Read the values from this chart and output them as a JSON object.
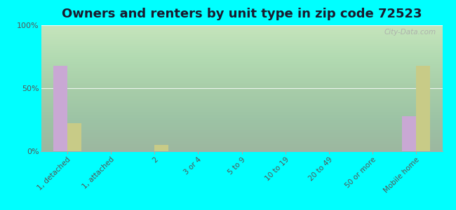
{
  "title": "Owners and renters by unit type in zip code 72523",
  "categories": [
    "1, detached",
    "1, attached",
    "2",
    "3 or 4",
    "5 to 9",
    "10 to 19",
    "20 to 49",
    "50 or more",
    "Mobile home"
  ],
  "owner_values": [
    68,
    0,
    0,
    0,
    0,
    0,
    0,
    0,
    28
  ],
  "renter_values": [
    22,
    0,
    5,
    0,
    0,
    0,
    0,
    0,
    68
  ],
  "owner_color": "#c9a8d4",
  "renter_color": "#c8cb87",
  "background_color": "#00ffff",
  "ylim": [
    0,
    100
  ],
  "yticks": [
    0,
    50,
    100
  ],
  "ytick_labels": [
    "0%",
    "50%",
    "100%"
  ],
  "watermark": "City-Data.com",
  "bar_width": 0.32,
  "title_fontsize": 13,
  "gradient_top": "#f5f8ee",
  "gradient_bottom": "#d8e8b0"
}
